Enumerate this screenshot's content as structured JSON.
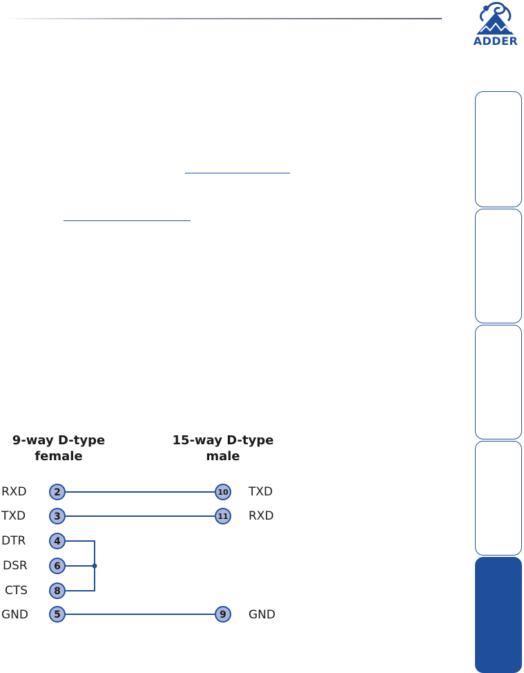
{
  "brand": {
    "name": "ADDER",
    "accent": "#1f4f9c",
    "logo_icon": "adder-snake-logo"
  },
  "side_tabs": {
    "count": 5,
    "active_index": 4
  },
  "diagram": {
    "left_heading": [
      "9-way D-type",
      "female"
    ],
    "right_heading": [
      "15-way D-type",
      "male"
    ],
    "left_pins": [
      {
        "signal": "RXD",
        "pin": "2"
      },
      {
        "signal": "TXD",
        "pin": "3"
      },
      {
        "signal": "DTR",
        "pin": "4"
      },
      {
        "signal": "DSR",
        "pin": "6"
      },
      {
        "signal": "CTS",
        "pin": "8"
      },
      {
        "signal": "GND",
        "pin": "5"
      }
    ],
    "right_pins": [
      {
        "pin": "10",
        "signal": "TXD"
      },
      {
        "pin": "11",
        "signal": "RXD"
      },
      {
        "pin": "9",
        "signal": "GND"
      }
    ],
    "colors": {
      "wire": "#1f4f9c",
      "pin_fill": "#a9b6dd",
      "pin_stroke": "#1f4f9c"
    }
  }
}
